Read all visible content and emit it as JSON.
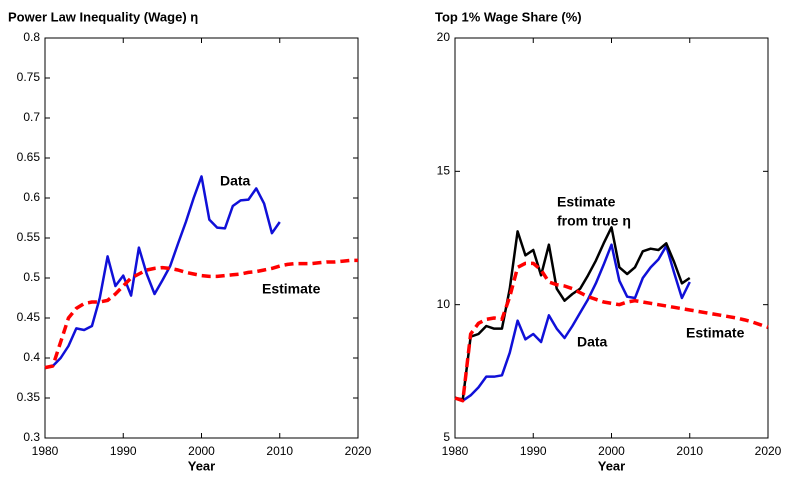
{
  "chart_data": [
    {
      "type": "line",
      "title": "Power Law Inequality (Wage) η",
      "xlabel": "Year",
      "x": [
        1980,
        1981,
        1982,
        1983,
        1984,
        1985,
        1986,
        1987,
        1988,
        1989,
        1990,
        1991,
        1992,
        1993,
        1994,
        1995,
        1996,
        1997,
        1998,
        1999,
        2000,
        2001,
        2002,
        2003,
        2004,
        2005,
        2006,
        2007,
        2008,
        2009,
        2010,
        2011,
        2012,
        2013,
        2014,
        2015,
        2016,
        2017,
        2018,
        2019,
        2020
      ],
      "xlim": [
        1980,
        2020
      ],
      "xticks": [
        1980,
        1990,
        2000,
        2010,
        2020
      ],
      "ylim": [
        0.3,
        0.8
      ],
      "yticks": [
        0.3,
        0.35,
        0.4,
        0.45,
        0.5,
        0.55,
        0.6,
        0.65,
        0.7,
        0.75,
        0.8
      ],
      "series": [
        {
          "name": "Data",
          "color": "#1010d8",
          "dash": false,
          "values": [
            0.388,
            0.39,
            0.4,
            0.415,
            0.437,
            0.435,
            0.44,
            0.475,
            0.527,
            0.49,
            0.503,
            0.478,
            0.538,
            0.505,
            0.48,
            0.497,
            0.515,
            0.543,
            0.57,
            0.6,
            0.627,
            0.573,
            0.563,
            0.562,
            0.59,
            0.597,
            0.598,
            0.612,
            0.593,
            0.556,
            0.57,
            null,
            null,
            null,
            null,
            null,
            null,
            null,
            null,
            null,
            null
          ]
        },
        {
          "name": "Estimate",
          "color": "#ff0000",
          "dash": true,
          "values": [
            0.388,
            0.39,
            0.42,
            0.45,
            0.462,
            0.468,
            0.47,
            0.47,
            0.472,
            0.48,
            0.49,
            0.5,
            0.505,
            0.51,
            0.512,
            0.513,
            0.512,
            0.51,
            0.507,
            0.505,
            0.503,
            0.502,
            0.502,
            0.503,
            0.504,
            0.505,
            0.507,
            0.508,
            0.51,
            0.512,
            0.515,
            0.517,
            0.518,
            0.518,
            0.518,
            0.519,
            0.52,
            0.52,
            0.521,
            0.522,
            0.522
          ]
        }
      ],
      "annotations": [
        {
          "text": "Data",
          "color": "#1010d8"
        },
        {
          "text": "Estimate",
          "color": "#ff0000"
        }
      ]
    },
    {
      "type": "line",
      "title": "Top 1% Wage Share (%)",
      "xlabel": "Year",
      "x": [
        1980,
        1981,
        1982,
        1983,
        1984,
        1985,
        1986,
        1987,
        1988,
        1989,
        1990,
        1991,
        1992,
        1993,
        1994,
        1995,
        1996,
        1997,
        1998,
        1999,
        2000,
        2001,
        2002,
        2003,
        2004,
        2005,
        2006,
        2007,
        2008,
        2009,
        2010,
        2011,
        2012,
        2013,
        2014,
        2015,
        2016,
        2017,
        2018,
        2019,
        2020
      ],
      "xlim": [
        1980,
        2020
      ],
      "xticks": [
        1980,
        1990,
        2000,
        2010,
        2020
      ],
      "ylim": [
        5,
        20
      ],
      "yticks": [
        5,
        10,
        15,
        20
      ],
      "series": [
        {
          "name": "Data",
          "color": "#1010d8",
          "dash": false,
          "values": [
            6.5,
            6.4,
            6.6,
            6.9,
            7.3,
            7.3,
            7.35,
            8.2,
            9.4,
            8.7,
            8.9,
            8.6,
            9.6,
            9.1,
            8.75,
            9.2,
            9.7,
            10.2,
            10.8,
            11.5,
            12.25,
            10.9,
            10.3,
            10.25,
            11.0,
            11.4,
            11.7,
            12.2,
            11.2,
            10.25,
            10.85,
            null,
            null,
            null,
            null,
            null,
            null,
            null,
            null,
            null,
            null
          ]
        },
        {
          "name": "Estimate from true η",
          "color": "#000000",
          "dash": false,
          "values": [
            6.5,
            6.45,
            8.8,
            8.9,
            9.2,
            9.1,
            9.1,
            10.6,
            12.75,
            11.85,
            12.05,
            11.1,
            12.25,
            10.6,
            10.15,
            10.4,
            10.6,
            11.1,
            11.65,
            12.3,
            12.9,
            11.4,
            11.15,
            11.4,
            12.0,
            12.1,
            12.05,
            12.3,
            11.6,
            10.8,
            11.0,
            null,
            null,
            null,
            null,
            null,
            null,
            null,
            null,
            null,
            null
          ]
        },
        {
          "name": "Estimate",
          "color": "#ff0000",
          "dash": true,
          "values": [
            6.5,
            6.4,
            8.9,
            9.3,
            9.45,
            9.5,
            9.45,
            10.3,
            11.4,
            11.55,
            11.55,
            11.3,
            10.85,
            10.75,
            10.7,
            10.6,
            10.45,
            10.3,
            10.2,
            10.1,
            10.05,
            10.0,
            10.1,
            10.15,
            10.1,
            10.05,
            10.0,
            9.95,
            9.9,
            9.85,
            9.8,
            9.75,
            9.7,
            9.65,
            9.6,
            9.55,
            9.5,
            9.43,
            9.35,
            9.25,
            9.15
          ]
        }
      ],
      "annotations": [
        {
          "text": "Estimate",
          "color": "#000000"
        },
        {
          "text": "from true η",
          "color": "#000000"
        },
        {
          "text": "Data",
          "color": "#1010d8"
        },
        {
          "text": "Estimate",
          "color": "#ff0000"
        }
      ]
    }
  ]
}
